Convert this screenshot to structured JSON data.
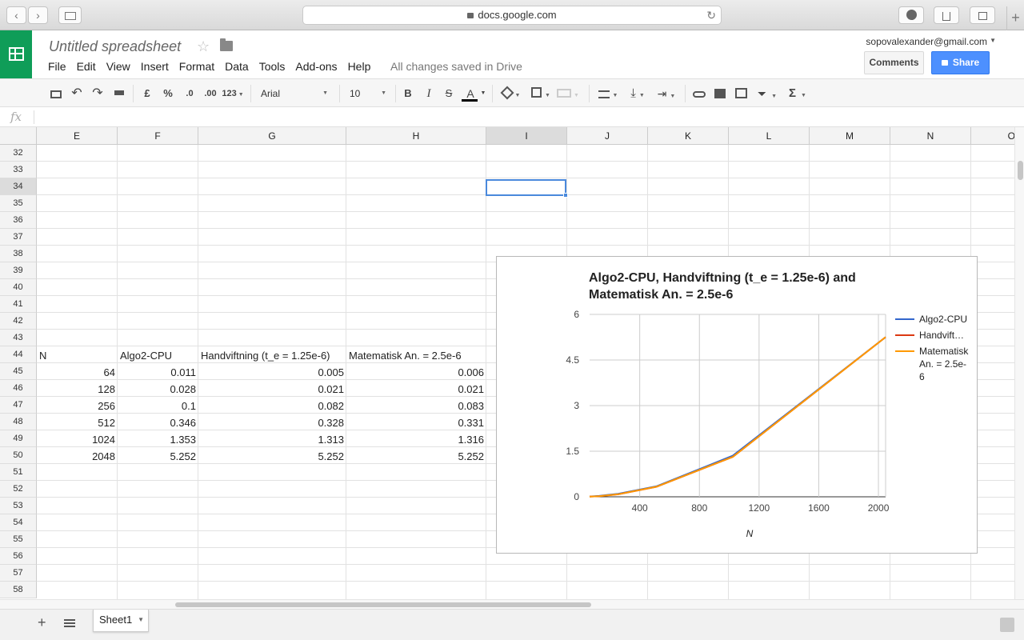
{
  "browser": {
    "url": "docs.google.com",
    "back_glyph": "‹",
    "forward_glyph": "›",
    "reload_glyph": "↻",
    "new_tab_glyph": "+"
  },
  "header": {
    "title": "Untitled spreadsheet",
    "star_glyph": "☆",
    "email": "sopovalexander@gmail.com",
    "comments_label": "Comments",
    "share_label": "Share",
    "saved_status": "All changes saved in Drive",
    "brand_color": "#0f9d58",
    "share_color": "#4d90fe"
  },
  "menu": [
    "File",
    "Edit",
    "View",
    "Insert",
    "Format",
    "Data",
    "Tools",
    "Add-ons",
    "Help"
  ],
  "toolbar": {
    "currency": "£",
    "percent": "%",
    "dec_decrease": ".0",
    "dec_increase": ".00",
    "more_formats": "123",
    "font": "Arial",
    "font_size": "10",
    "bold": "B",
    "italic": "I",
    "strike": "S",
    "text_color": "A",
    "sum": "Σ",
    "text_color_underline": "#000000"
  },
  "formula_bar": {
    "fx": "fx",
    "value": ""
  },
  "grid": {
    "columns": [
      "E",
      "F",
      "G",
      "H",
      "I",
      "J",
      "K",
      "L",
      "M",
      "N",
      "O"
    ],
    "selected_column": "I",
    "rows": [
      32,
      33,
      34,
      35,
      36,
      37,
      38,
      39,
      40,
      41,
      42,
      43,
      44,
      45,
      46,
      47,
      48,
      49,
      50,
      51,
      52,
      53,
      54,
      55,
      56,
      57,
      58
    ],
    "selected_row": 34,
    "selected_cell": "I34",
    "table": {
      "header": [
        "N",
        "Algo2-CPU",
        "Handviftning (t_e = 1.25e-6)",
        "Matematisk An. = 2.5e-6"
      ],
      "rows": [
        [
          "64",
          "0.011",
          "0.005",
          "0.006"
        ],
        [
          "128",
          "0.028",
          "0.021",
          "0.021"
        ],
        [
          "256",
          "0.1",
          "0.082",
          "0.083"
        ],
        [
          "512",
          "0.346",
          "0.328",
          "0.331"
        ],
        [
          "1024",
          "1.353",
          "1.313",
          "1.316"
        ],
        [
          "2048",
          "5.252",
          "5.252",
          "5.252"
        ]
      ]
    }
  },
  "chart_data": {
    "type": "line",
    "title": "Algo2-CPU, Handviftning (t_e = 1.25e-6) and Matematisk An. = 2.5e-6",
    "title_line1": "Algo2-CPU, Handviftning (t_e = 1.25e-6) and",
    "title_line2": "Matematisk An. = 2.5e-6",
    "xlabel": "N",
    "ylabel": "",
    "x": [
      64,
      128,
      256,
      512,
      1024,
      2048
    ],
    "xlim": [
      64,
      2048
    ],
    "ylim": [
      0,
      6
    ],
    "xticks": [
      400,
      800,
      1200,
      1600,
      2000
    ],
    "yticks": [
      0,
      1.5,
      3,
      4.5,
      6
    ],
    "grid": true,
    "legend_position": "right",
    "series": [
      {
        "name": "Algo2-CPU",
        "legend_label": "Algo2-CPU",
        "color": "#3366cc",
        "values": [
          0.011,
          0.028,
          0.1,
          0.346,
          1.353,
          5.252
        ]
      },
      {
        "name": "Handviftning (t_e = 1.25e-6)",
        "legend_label": "Handvift…",
        "color": "#dc3912",
        "values": [
          0.005,
          0.021,
          0.082,
          0.328,
          1.313,
          5.252
        ]
      },
      {
        "name": "Matematisk An. = 2.5e-6",
        "legend_label": "Matematisk An. = 2.5e-6",
        "color": "#ff9900",
        "values": [
          0.006,
          0.021,
          0.083,
          0.331,
          1.316,
          5.252
        ]
      }
    ]
  },
  "sheets": {
    "add_glyph": "+",
    "tabs": [
      "Sheet1"
    ],
    "active": "Sheet1"
  }
}
